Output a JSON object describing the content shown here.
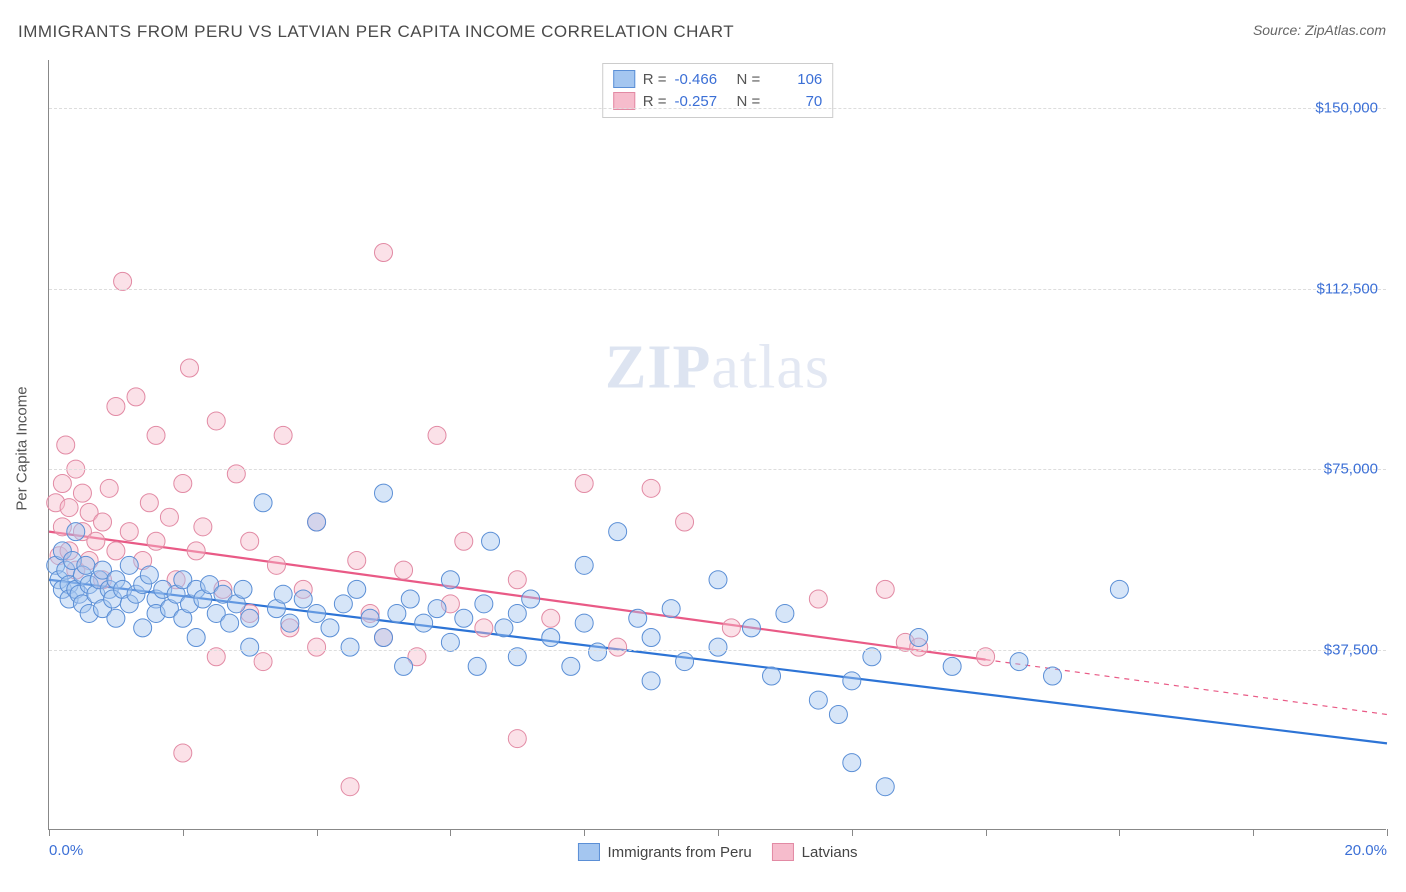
{
  "title": "IMMIGRANTS FROM PERU VS LATVIAN PER CAPITA INCOME CORRELATION CHART",
  "source": "Source: ZipAtlas.com",
  "watermark_prefix": "ZIP",
  "watermark_suffix": "atlas",
  "ylabel": "Per Capita Income",
  "chart": {
    "type": "scatter",
    "background_color": "#ffffff",
    "grid_color": "#dddddd",
    "axis_color": "#888888",
    "xlim": [
      0,
      20
    ],
    "ylim": [
      0,
      160000
    ],
    "xtick_positions": [
      0,
      2,
      4,
      6,
      8,
      10,
      12,
      14,
      16,
      18,
      20
    ],
    "xtick_labels_shown": {
      "0": "0.0%",
      "20": "20.0%"
    },
    "ytick_positions": [
      37500,
      75000,
      112500,
      150000
    ],
    "ytick_labels": [
      "$37,500",
      "$75,000",
      "$112,500",
      "$150,000"
    ],
    "marker_radius": 9,
    "marker_opacity": 0.45,
    "line_width": 2.2,
    "series": [
      {
        "name": "Immigrants from Peru",
        "color_fill": "#a4c6f0",
        "color_stroke": "#5b8fd6",
        "line_color": "#2d74d6",
        "R": "-0.466",
        "N": "106",
        "trend": {
          "x0": 0,
          "y0": 52000,
          "x1": 20,
          "y1": 18000,
          "solid_until_x": 20
        },
        "points": [
          [
            0.1,
            55000
          ],
          [
            0.15,
            52000
          ],
          [
            0.2,
            58000
          ],
          [
            0.2,
            50000
          ],
          [
            0.25,
            54000
          ],
          [
            0.3,
            51000
          ],
          [
            0.3,
            48000
          ],
          [
            0.35,
            56000
          ],
          [
            0.4,
            50000
          ],
          [
            0.4,
            62000
          ],
          [
            0.45,
            49000
          ],
          [
            0.5,
            53000
          ],
          [
            0.5,
            47000
          ],
          [
            0.55,
            55000
          ],
          [
            0.6,
            51000
          ],
          [
            0.6,
            45000
          ],
          [
            0.7,
            49000
          ],
          [
            0.75,
            52000
          ],
          [
            0.8,
            54000
          ],
          [
            0.8,
            46000
          ],
          [
            0.9,
            50000
          ],
          [
            0.95,
            48000
          ],
          [
            1.0,
            52000
          ],
          [
            1.0,
            44000
          ],
          [
            1.1,
            50000
          ],
          [
            1.2,
            47000
          ],
          [
            1.2,
            55000
          ],
          [
            1.3,
            49000
          ],
          [
            1.4,
            51000
          ],
          [
            1.4,
            42000
          ],
          [
            1.5,
            53000
          ],
          [
            1.6,
            48000
          ],
          [
            1.6,
            45000
          ],
          [
            1.7,
            50000
          ],
          [
            1.8,
            46000
          ],
          [
            1.9,
            49000
          ],
          [
            2.0,
            44000
          ],
          [
            2.0,
            52000
          ],
          [
            2.1,
            47000
          ],
          [
            2.2,
            50000
          ],
          [
            2.2,
            40000
          ],
          [
            2.3,
            48000
          ],
          [
            2.4,
            51000
          ],
          [
            2.5,
            45000
          ],
          [
            2.6,
            49000
          ],
          [
            2.7,
            43000
          ],
          [
            2.8,
            47000
          ],
          [
            2.9,
            50000
          ],
          [
            3.0,
            44000
          ],
          [
            3.0,
            38000
          ],
          [
            3.2,
            68000
          ],
          [
            3.4,
            46000
          ],
          [
            3.5,
            49000
          ],
          [
            3.6,
            43000
          ],
          [
            3.8,
            48000
          ],
          [
            4.0,
            45000
          ],
          [
            4.0,
            64000
          ],
          [
            4.2,
            42000
          ],
          [
            4.4,
            47000
          ],
          [
            4.5,
            38000
          ],
          [
            4.6,
            50000
          ],
          [
            4.8,
            44000
          ],
          [
            5.0,
            70000
          ],
          [
            5.0,
            40000
          ],
          [
            5.2,
            45000
          ],
          [
            5.3,
            34000
          ],
          [
            5.4,
            48000
          ],
          [
            5.6,
            43000
          ],
          [
            5.8,
            46000
          ],
          [
            6.0,
            39000
          ],
          [
            6.0,
            52000
          ],
          [
            6.2,
            44000
          ],
          [
            6.4,
            34000
          ],
          [
            6.5,
            47000
          ],
          [
            6.6,
            60000
          ],
          [
            6.8,
            42000
          ],
          [
            7.0,
            45000
          ],
          [
            7.0,
            36000
          ],
          [
            7.2,
            48000
          ],
          [
            7.5,
            40000
          ],
          [
            7.8,
            34000
          ],
          [
            8.0,
            43000
          ],
          [
            8.0,
            55000
          ],
          [
            8.2,
            37000
          ],
          [
            8.5,
            62000
          ],
          [
            8.8,
            44000
          ],
          [
            9.0,
            40000
          ],
          [
            9.0,
            31000
          ],
          [
            9.3,
            46000
          ],
          [
            9.5,
            35000
          ],
          [
            10.0,
            52000
          ],
          [
            10.0,
            38000
          ],
          [
            10.5,
            42000
          ],
          [
            10.8,
            32000
          ],
          [
            11.0,
            45000
          ],
          [
            11.5,
            27000
          ],
          [
            11.8,
            24000
          ],
          [
            12.0,
            14000
          ],
          [
            12.3,
            36000
          ],
          [
            12.5,
            9000
          ],
          [
            13.0,
            40000
          ],
          [
            13.5,
            34000
          ],
          [
            14.5,
            35000
          ],
          [
            15.0,
            32000
          ],
          [
            16.0,
            50000
          ],
          [
            12.0,
            31000
          ]
        ]
      },
      {
        "name": "Latvians",
        "color_fill": "#f6bccc",
        "color_stroke": "#e28aa4",
        "line_color": "#e95a86",
        "R": "-0.257",
        "N": "70",
        "trend": {
          "x0": 0,
          "y0": 62000,
          "x1": 20,
          "y1": 24000,
          "solid_until_x": 14
        },
        "points": [
          [
            0.1,
            68000
          ],
          [
            0.15,
            57000
          ],
          [
            0.2,
            72000
          ],
          [
            0.2,
            63000
          ],
          [
            0.25,
            80000
          ],
          [
            0.3,
            58000
          ],
          [
            0.3,
            67000
          ],
          [
            0.4,
            75000
          ],
          [
            0.4,
            54000
          ],
          [
            0.5,
            70000
          ],
          [
            0.5,
            62000
          ],
          [
            0.6,
            56000
          ],
          [
            0.6,
            66000
          ],
          [
            0.7,
            60000
          ],
          [
            0.8,
            64000
          ],
          [
            0.8,
            52000
          ],
          [
            0.9,
            71000
          ],
          [
            1.0,
            58000
          ],
          [
            1.0,
            88000
          ],
          [
            1.1,
            114000
          ],
          [
            1.2,
            62000
          ],
          [
            1.3,
            90000
          ],
          [
            1.4,
            56000
          ],
          [
            1.5,
            68000
          ],
          [
            1.6,
            60000
          ],
          [
            1.6,
            82000
          ],
          [
            1.8,
            65000
          ],
          [
            1.9,
            52000
          ],
          [
            2.0,
            72000
          ],
          [
            2.0,
            16000
          ],
          [
            2.1,
            96000
          ],
          [
            2.2,
            58000
          ],
          [
            2.3,
            63000
          ],
          [
            2.5,
            85000
          ],
          [
            2.5,
            36000
          ],
          [
            2.6,
            50000
          ],
          [
            2.8,
            74000
          ],
          [
            3.0,
            45000
          ],
          [
            3.0,
            60000
          ],
          [
            3.2,
            35000
          ],
          [
            3.4,
            55000
          ],
          [
            3.5,
            82000
          ],
          [
            3.6,
            42000
          ],
          [
            3.8,
            50000
          ],
          [
            4.0,
            64000
          ],
          [
            4.0,
            38000
          ],
          [
            4.5,
            9000
          ],
          [
            4.6,
            56000
          ],
          [
            4.8,
            45000
          ],
          [
            5.0,
            120000
          ],
          [
            5.0,
            40000
          ],
          [
            5.3,
            54000
          ],
          [
            5.5,
            36000
          ],
          [
            5.8,
            82000
          ],
          [
            6.0,
            47000
          ],
          [
            6.2,
            60000
          ],
          [
            6.5,
            42000
          ],
          [
            7.0,
            19000
          ],
          [
            7.0,
            52000
          ],
          [
            7.5,
            44000
          ],
          [
            8.0,
            72000
          ],
          [
            8.5,
            38000
          ],
          [
            9.0,
            71000
          ],
          [
            9.5,
            64000
          ],
          [
            10.2,
            42000
          ],
          [
            11.5,
            48000
          ],
          [
            12.5,
            50000
          ],
          [
            12.8,
            39000
          ],
          [
            13.0,
            38000
          ],
          [
            14.0,
            36000
          ]
        ]
      }
    ],
    "legend_labels": {
      "R": "R =",
      "N": "N ="
    }
  }
}
